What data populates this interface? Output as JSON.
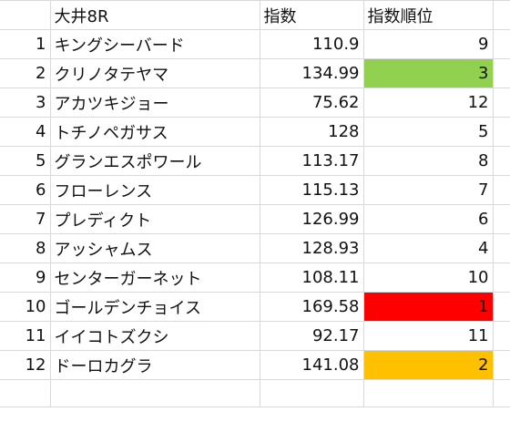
{
  "sheet": {
    "header": {
      "race": "大井8R",
      "score": "指数",
      "rank": "指数順位"
    },
    "rows": [
      {
        "idx": "1",
        "name": "キングシーバード",
        "score": "110.9",
        "rank": "9",
        "highlight": null
      },
      {
        "idx": "2",
        "name": "クリノタテヤマ",
        "score": "134.99",
        "rank": "3",
        "highlight": "#92d050"
      },
      {
        "idx": "3",
        "name": "アカツキジョー",
        "score": "75.62",
        "rank": "12",
        "highlight": null
      },
      {
        "idx": "4",
        "name": "トチノペガサス",
        "score": "128",
        "rank": "5",
        "highlight": null
      },
      {
        "idx": "5",
        "name": "グランエスポワール",
        "score": "113.17",
        "rank": "8",
        "highlight": null
      },
      {
        "idx": "6",
        "name": "フローレンス",
        "score": "115.13",
        "rank": "7",
        "highlight": null
      },
      {
        "idx": "7",
        "name": "プレディクト",
        "score": "126.99",
        "rank": "6",
        "highlight": null
      },
      {
        "idx": "8",
        "name": "アッシャムス",
        "score": "128.93",
        "rank": "4",
        "highlight": null
      },
      {
        "idx": "9",
        "name": "センターガーネット",
        "score": "108.11",
        "rank": "10",
        "highlight": null
      },
      {
        "idx": "10",
        "name": "ゴールデンチョイス",
        "score": "169.58",
        "rank": "1",
        "highlight": "#ff0000"
      },
      {
        "idx": "11",
        "name": "イイコトズクシ",
        "score": "92.17",
        "rank": "11",
        "highlight": null
      },
      {
        "idx": "12",
        "name": "ドーロカグラ",
        "score": "141.08",
        "rank": "2",
        "highlight": "#ffc000"
      }
    ]
  }
}
